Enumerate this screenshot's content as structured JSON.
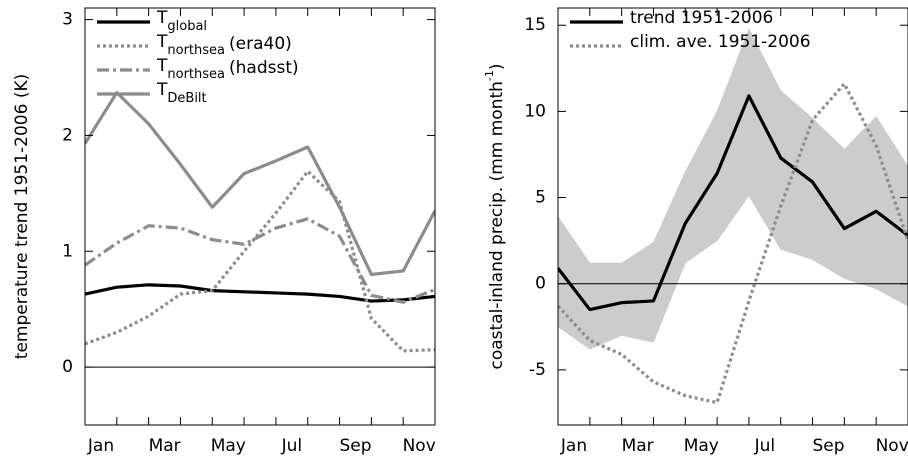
{
  "chart_data": [
    {
      "type": "line",
      "ylabel": "temperature trend 1951-2006 (K)",
      "categories": [
        "Jan",
        null,
        "Mar",
        null,
        "May",
        null,
        "Jul",
        null,
        "Sep",
        null,
        "Nov",
        null
      ],
      "ylim": [
        -0.5,
        3.1
      ],
      "yticks": [
        0,
        1,
        2,
        3
      ],
      "legend": "top-left",
      "series": [
        {
          "name": "T",
          "subscript": "global",
          "color": "#000000",
          "dash": "solid",
          "values": [
            0.63,
            0.69,
            0.71,
            0.7,
            0.66,
            0.65,
            0.64,
            0.63,
            0.61,
            0.57,
            0.58,
            0.61
          ]
        },
        {
          "name": "T",
          "subscript": "northsea",
          "note": "(era40)",
          "color": "#8c8c8c",
          "dash": "dotted",
          "values": [
            0.2,
            0.3,
            0.44,
            0.63,
            0.66,
            1.0,
            1.33,
            1.69,
            1.43,
            0.42,
            0.14,
            0.15
          ]
        },
        {
          "name": "T",
          "subscript": "northsea",
          "note": "(hadsst)",
          "color": "#8c8c8c",
          "dash": "dashdot",
          "values": [
            0.88,
            1.07,
            1.22,
            1.2,
            1.1,
            1.06,
            1.2,
            1.28,
            1.13,
            0.62,
            0.56,
            0.67
          ]
        },
        {
          "name": "T",
          "subscript": "DeBilt",
          "color": "#8c8c8c",
          "dash": "solid",
          "values": [
            1.93,
            2.37,
            2.1,
            1.75,
            1.38,
            1.67,
            1.78,
            1.9,
            1.38,
            0.8,
            0.83,
            1.35
          ]
        }
      ]
    },
    {
      "type": "line",
      "ylabel": "coastal-inland precip. (mm month",
      "ylabel_sup": "-1",
      "ylabel_end": ")",
      "categories": [
        "Jan",
        null,
        "Mar",
        null,
        "May",
        null,
        "Jul",
        null,
        "Sep",
        null,
        "Nov",
        null
      ],
      "ylim": [
        -8.2,
        16
      ],
      "yticks": [
        -5,
        0,
        5,
        10,
        15
      ],
      "legend": "top-left",
      "band": {
        "color": "#cccccc",
        "upper": [
          3.9,
          1.2,
          1.2,
          2.4,
          6.5,
          10,
          14.8,
          11.2,
          9.6,
          7.8,
          9.7,
          6.8
        ],
        "lower": [
          -2.5,
          -3.8,
          -3.0,
          -3.4,
          1.2,
          2.5,
          5.1,
          2.0,
          1.4,
          0.3,
          -0.3,
          -1.3
        ]
      },
      "series": [
        {
          "name": "trend 1951-2006",
          "color": "#000000",
          "dash": "solid",
          "values": [
            0.9,
            -1.5,
            -1.1,
            -1.0,
            3.5,
            6.4,
            10.9,
            7.3,
            5.9,
            3.2,
            4.2,
            2.8
          ]
        },
        {
          "name": "clim. ave. 1951-2006",
          "color": "#8c8c8c",
          "dash": "dotted",
          "values": [
            -1.3,
            -3.3,
            -4.1,
            -5.7,
            -6.5,
            -6.9,
            -1.0,
            4.5,
            9.5,
            11.6,
            8.0,
            2.5
          ]
        }
      ]
    }
  ]
}
